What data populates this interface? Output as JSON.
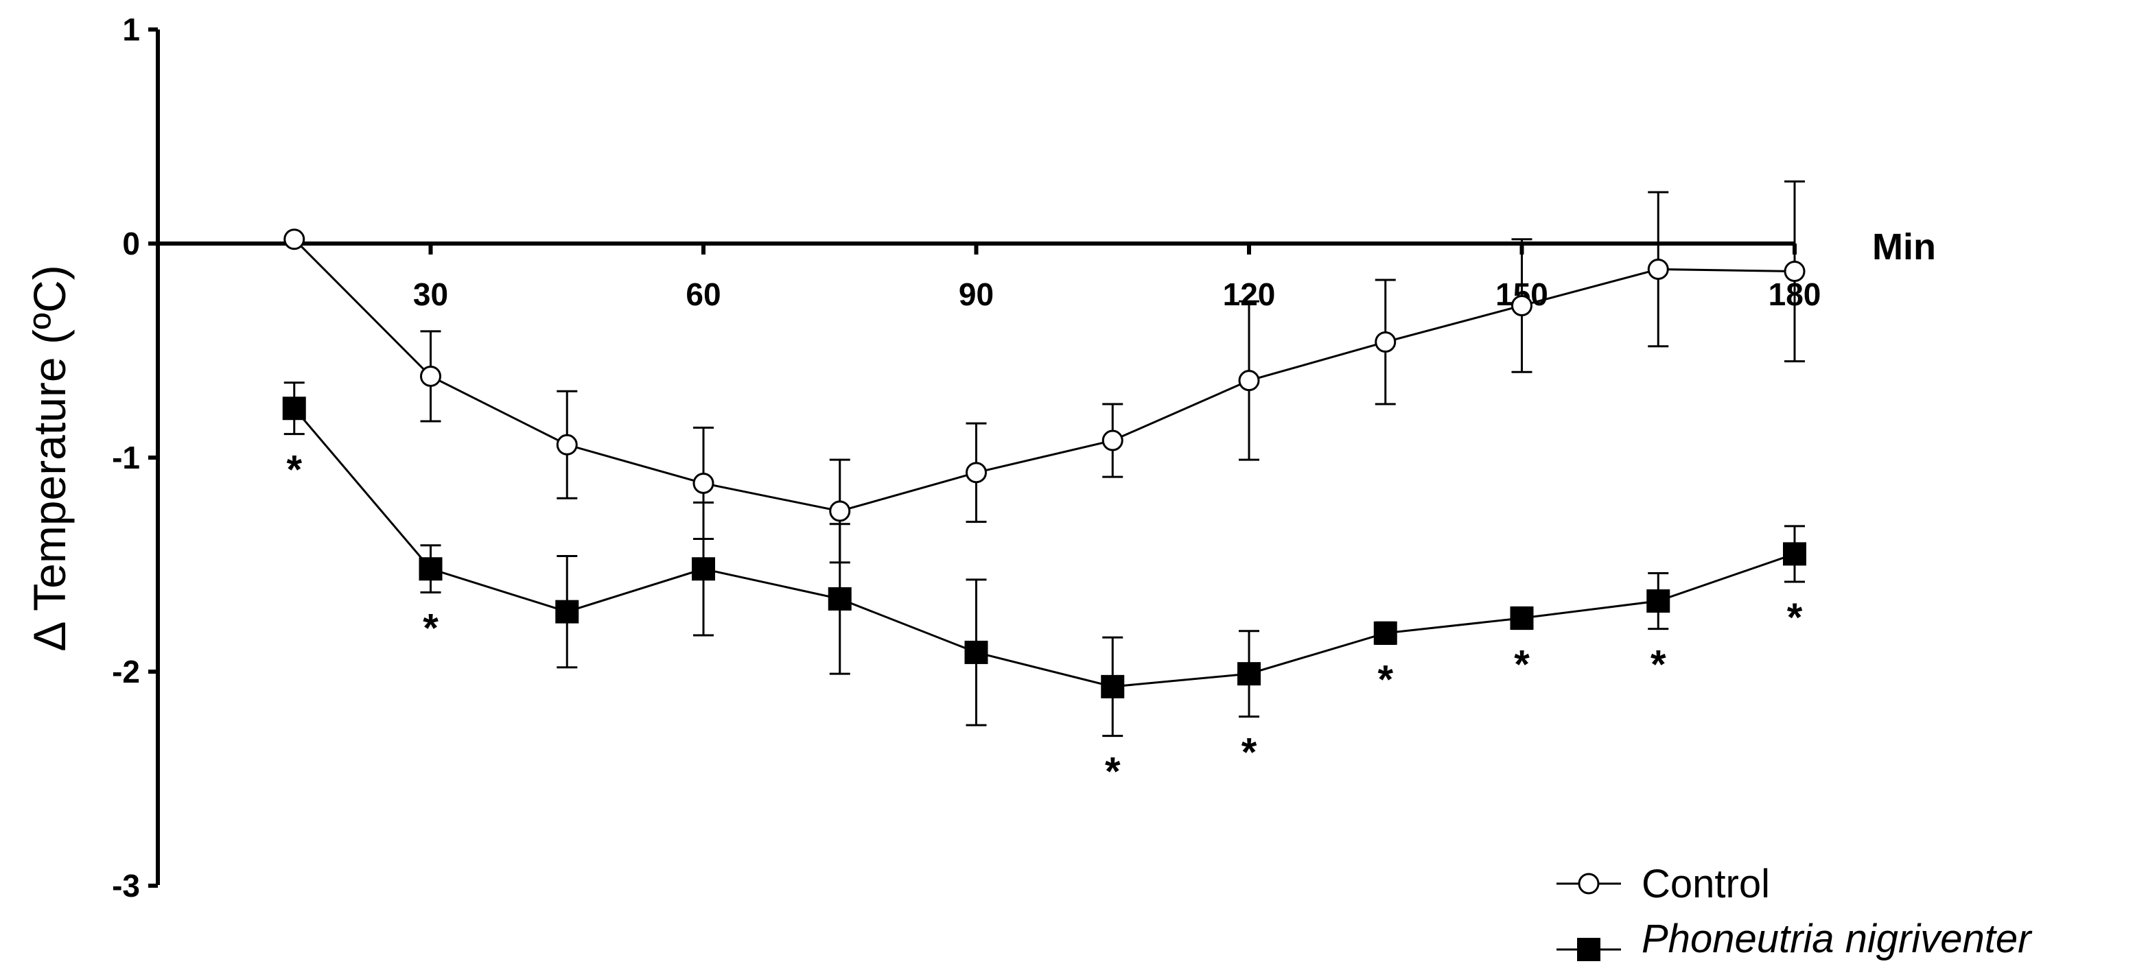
{
  "chart_data": {
    "type": "line",
    "title": "",
    "xlabel": "Min",
    "ylabel": "Δ Temperature (ºC)",
    "xlim": [
      0,
      180
    ],
    "ylim": [
      -3,
      1
    ],
    "x_ticks": [
      30,
      60,
      90,
      120,
      150,
      180
    ],
    "y_ticks": [
      1,
      0,
      -1,
      -2,
      -3
    ],
    "grid": false,
    "legend": "bottom-right",
    "x": [
      15,
      30,
      45,
      60,
      75,
      90,
      105,
      120,
      135,
      150,
      165,
      180
    ],
    "series": [
      {
        "name": "Control",
        "marker": "open-circle",
        "values": [
          0.02,
          -0.62,
          -0.94,
          -1.12,
          -1.25,
          -1.07,
          -0.92,
          -0.64,
          -0.46,
          -0.29,
          -0.12,
          -0.13
        ],
        "error": [
          0,
          0.21,
          0.25,
          0.26,
          0.24,
          0.23,
          0.17,
          0.37,
          0.29,
          0.31,
          0.36,
          0.42
        ]
      },
      {
        "name": "Phoneutria nigriventer",
        "marker": "filled-square",
        "values": [
          -0.77,
          -1.52,
          -1.72,
          -1.52,
          -1.66,
          -1.91,
          -2.07,
          -2.01,
          -1.82,
          -1.75,
          -1.67,
          -1.45
        ],
        "error": [
          0.12,
          0.11,
          0.26,
          0.31,
          0.35,
          0.34,
          0.23,
          0.2,
          0.05,
          0.05,
          0.13,
          0.13
        ]
      }
    ],
    "significance": {
      "symbol": "*",
      "x": [
        15,
        30,
        105,
        120,
        135,
        150,
        165,
        180
      ]
    }
  }
}
